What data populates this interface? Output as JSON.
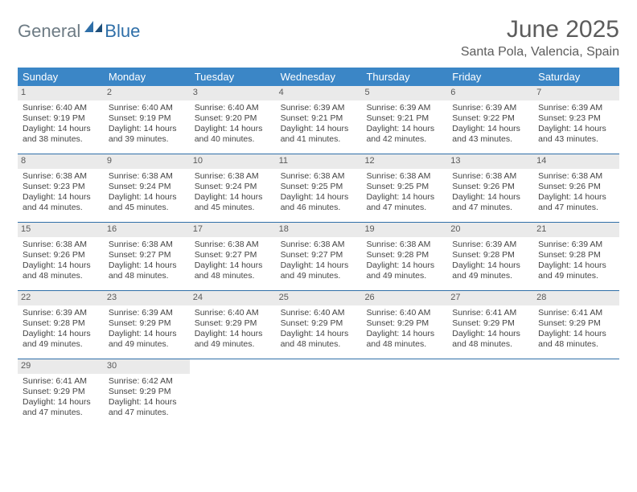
{
  "logo": {
    "text1": "General",
    "text2": "Blue"
  },
  "title": "June 2025",
  "location": "Santa Pola, Valencia, Spain",
  "colors": {
    "header_bg": "#3b86c6",
    "header_text": "#ffffff",
    "row_border": "#2f6fa8",
    "daynum_bg": "#eaeaea",
    "logo_gray": "#6d7b84",
    "logo_blue": "#2f6fa8"
  },
  "day_headers": [
    "Sunday",
    "Monday",
    "Tuesday",
    "Wednesday",
    "Thursday",
    "Friday",
    "Saturday"
  ],
  "weeks": [
    [
      {
        "n": "1",
        "sr": "6:40 AM",
        "ss": "9:19 PM",
        "dl": "14 hours and 38 minutes."
      },
      {
        "n": "2",
        "sr": "6:40 AM",
        "ss": "9:19 PM",
        "dl": "14 hours and 39 minutes."
      },
      {
        "n": "3",
        "sr": "6:40 AM",
        "ss": "9:20 PM",
        "dl": "14 hours and 40 minutes."
      },
      {
        "n": "4",
        "sr": "6:39 AM",
        "ss": "9:21 PM",
        "dl": "14 hours and 41 minutes."
      },
      {
        "n": "5",
        "sr": "6:39 AM",
        "ss": "9:21 PM",
        "dl": "14 hours and 42 minutes."
      },
      {
        "n": "6",
        "sr": "6:39 AM",
        "ss": "9:22 PM",
        "dl": "14 hours and 43 minutes."
      },
      {
        "n": "7",
        "sr": "6:39 AM",
        "ss": "9:23 PM",
        "dl": "14 hours and 43 minutes."
      }
    ],
    [
      {
        "n": "8",
        "sr": "6:38 AM",
        "ss": "9:23 PM",
        "dl": "14 hours and 44 minutes."
      },
      {
        "n": "9",
        "sr": "6:38 AM",
        "ss": "9:24 PM",
        "dl": "14 hours and 45 minutes."
      },
      {
        "n": "10",
        "sr": "6:38 AM",
        "ss": "9:24 PM",
        "dl": "14 hours and 45 minutes."
      },
      {
        "n": "11",
        "sr": "6:38 AM",
        "ss": "9:25 PM",
        "dl": "14 hours and 46 minutes."
      },
      {
        "n": "12",
        "sr": "6:38 AM",
        "ss": "9:25 PM",
        "dl": "14 hours and 47 minutes."
      },
      {
        "n": "13",
        "sr": "6:38 AM",
        "ss": "9:26 PM",
        "dl": "14 hours and 47 minutes."
      },
      {
        "n": "14",
        "sr": "6:38 AM",
        "ss": "9:26 PM",
        "dl": "14 hours and 47 minutes."
      }
    ],
    [
      {
        "n": "15",
        "sr": "6:38 AM",
        "ss": "9:26 PM",
        "dl": "14 hours and 48 minutes."
      },
      {
        "n": "16",
        "sr": "6:38 AM",
        "ss": "9:27 PM",
        "dl": "14 hours and 48 minutes."
      },
      {
        "n": "17",
        "sr": "6:38 AM",
        "ss": "9:27 PM",
        "dl": "14 hours and 48 minutes."
      },
      {
        "n": "18",
        "sr": "6:38 AM",
        "ss": "9:27 PM",
        "dl": "14 hours and 49 minutes."
      },
      {
        "n": "19",
        "sr": "6:38 AM",
        "ss": "9:28 PM",
        "dl": "14 hours and 49 minutes."
      },
      {
        "n": "20",
        "sr": "6:39 AM",
        "ss": "9:28 PM",
        "dl": "14 hours and 49 minutes."
      },
      {
        "n": "21",
        "sr": "6:39 AM",
        "ss": "9:28 PM",
        "dl": "14 hours and 49 minutes."
      }
    ],
    [
      {
        "n": "22",
        "sr": "6:39 AM",
        "ss": "9:28 PM",
        "dl": "14 hours and 49 minutes."
      },
      {
        "n": "23",
        "sr": "6:39 AM",
        "ss": "9:29 PM",
        "dl": "14 hours and 49 minutes."
      },
      {
        "n": "24",
        "sr": "6:40 AM",
        "ss": "9:29 PM",
        "dl": "14 hours and 49 minutes."
      },
      {
        "n": "25",
        "sr": "6:40 AM",
        "ss": "9:29 PM",
        "dl": "14 hours and 48 minutes."
      },
      {
        "n": "26",
        "sr": "6:40 AM",
        "ss": "9:29 PM",
        "dl": "14 hours and 48 minutes."
      },
      {
        "n": "27",
        "sr": "6:41 AM",
        "ss": "9:29 PM",
        "dl": "14 hours and 48 minutes."
      },
      {
        "n": "28",
        "sr": "6:41 AM",
        "ss": "9:29 PM",
        "dl": "14 hours and 48 minutes."
      }
    ],
    [
      {
        "n": "29",
        "sr": "6:41 AM",
        "ss": "9:29 PM",
        "dl": "14 hours and 47 minutes."
      },
      {
        "n": "30",
        "sr": "6:42 AM",
        "ss": "9:29 PM",
        "dl": "14 hours and 47 minutes."
      },
      null,
      null,
      null,
      null,
      null
    ]
  ],
  "labels": {
    "sunrise": "Sunrise: ",
    "sunset": "Sunset: ",
    "daylight": "Daylight: "
  }
}
